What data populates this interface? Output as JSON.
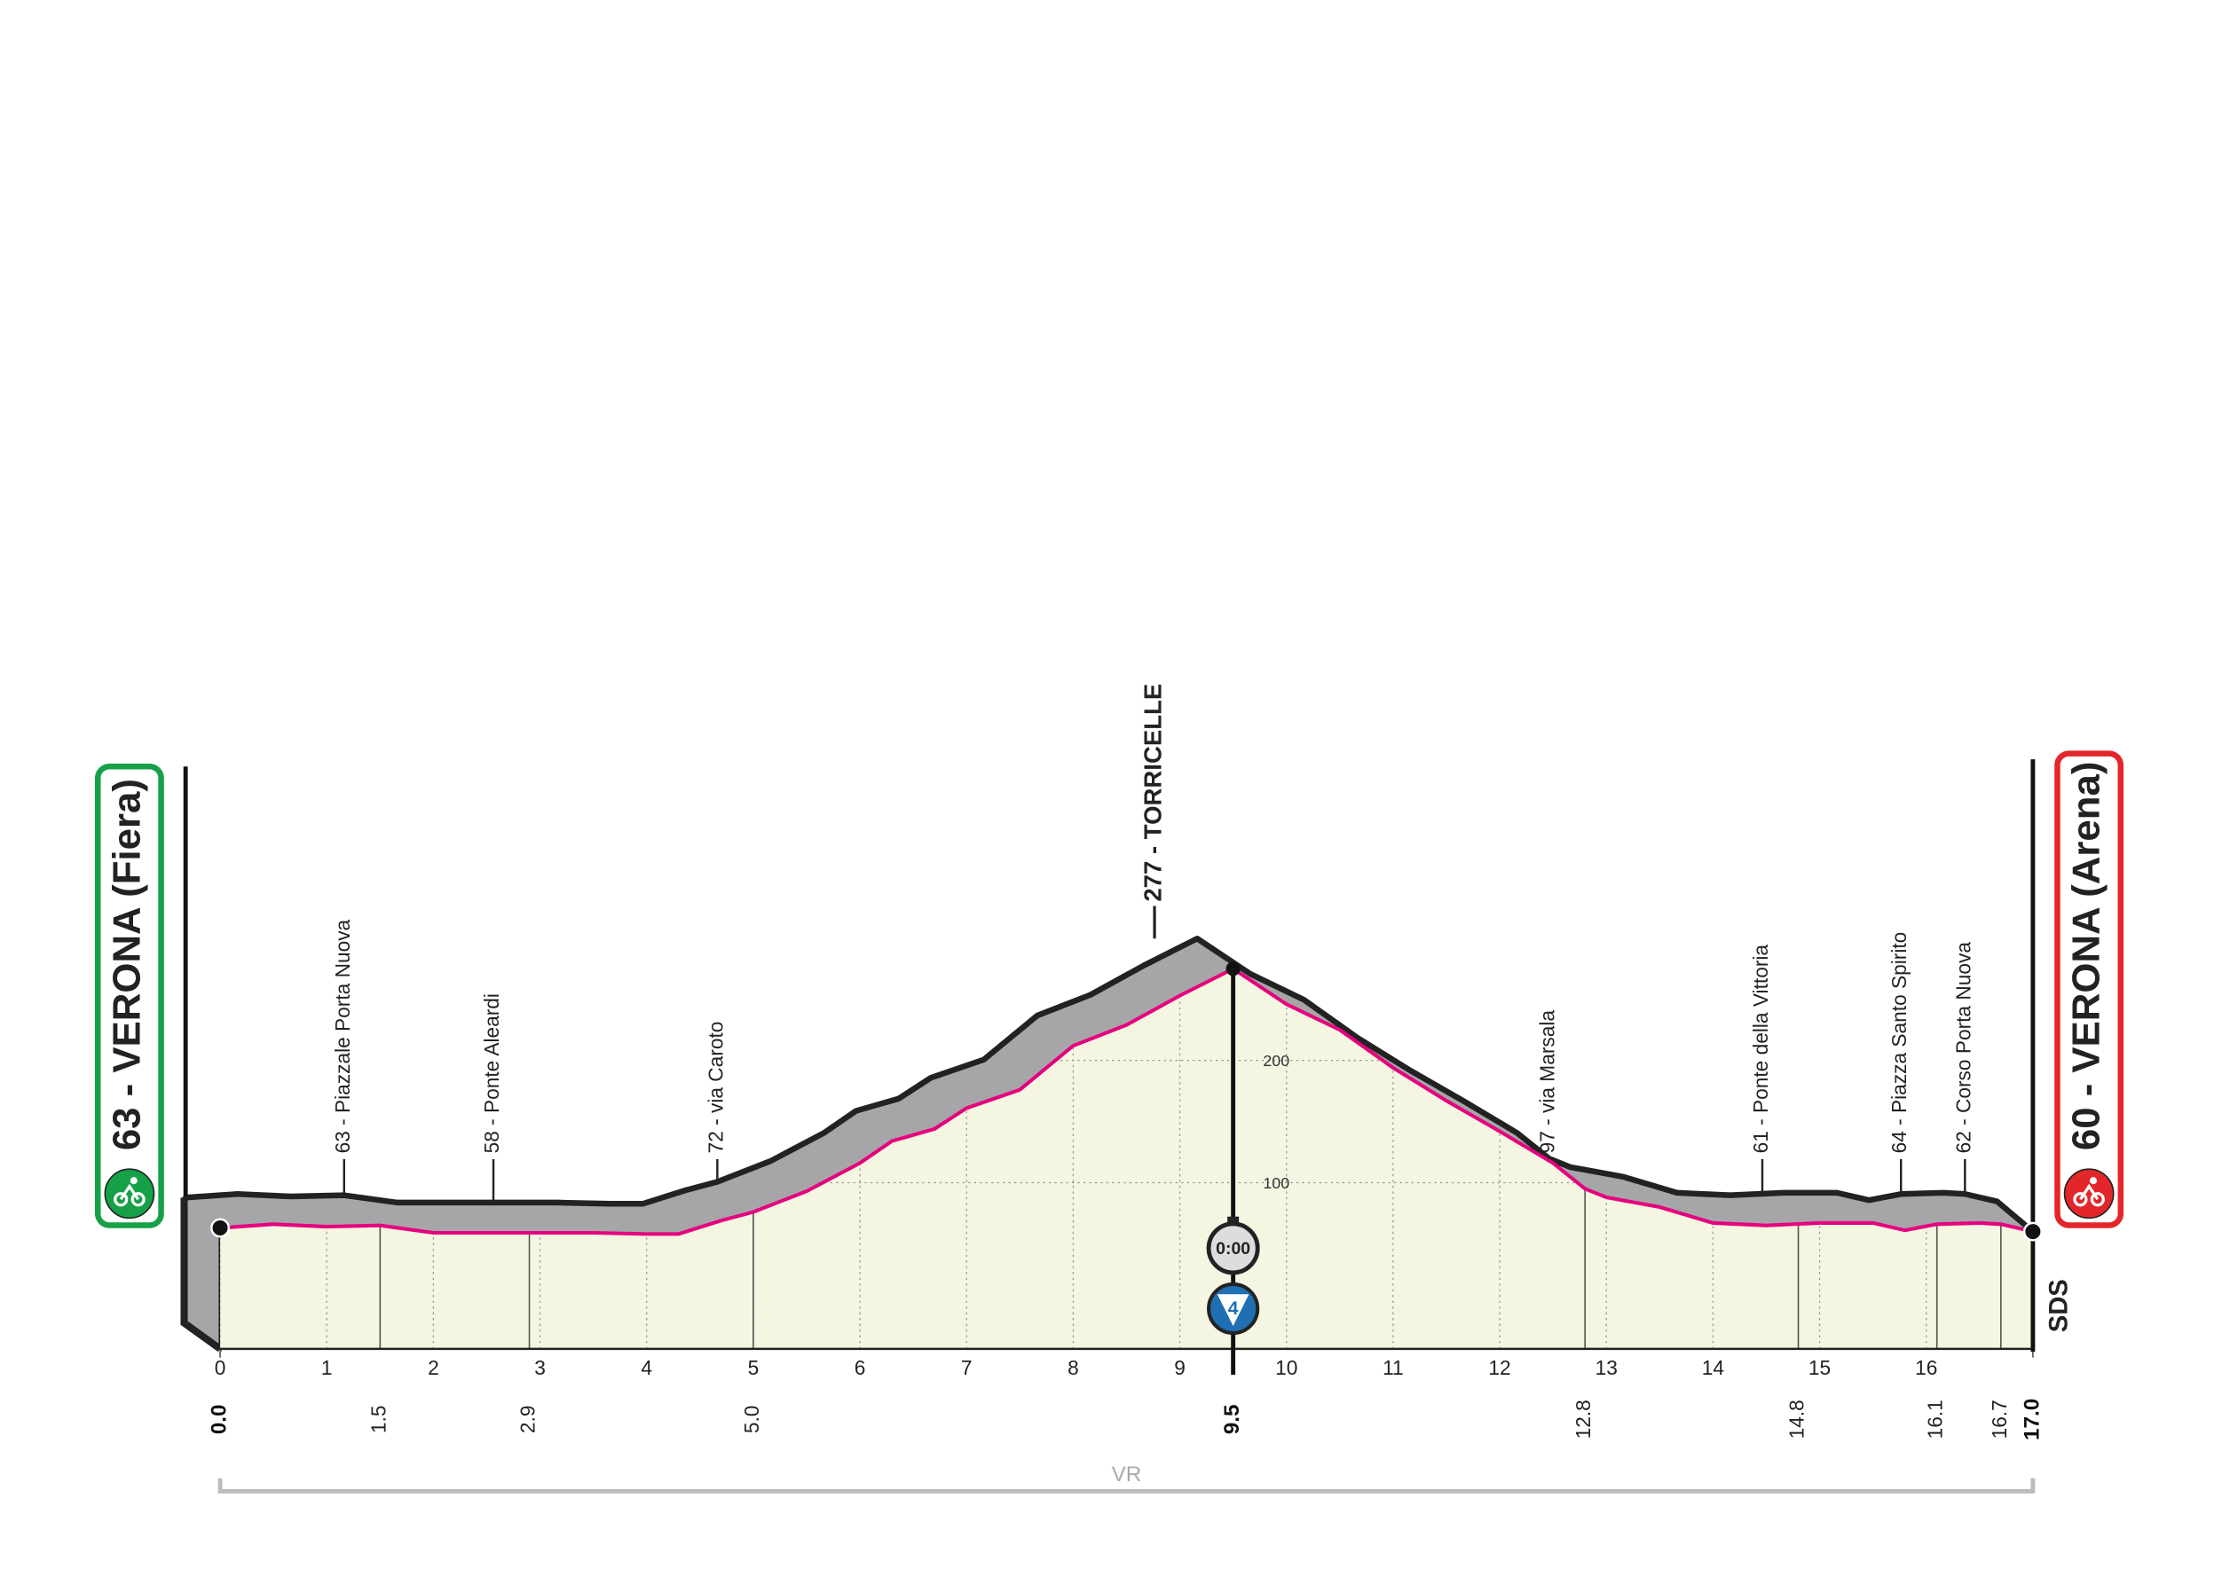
{
  "chart_data": {
    "type": "profile",
    "start": {
      "label": "63 - VERONA (Fiera)"
    },
    "finish": {
      "label": "60 - VERONA (Arena)"
    },
    "summit": {
      "label": "277 - TORRICELLE",
      "km": 9.1
    },
    "x": [
      0,
      0.5,
      1,
      1.5,
      2,
      2.5,
      3,
      3.5,
      4,
      4.3,
      4.7,
      5,
      5.5,
      6,
      6.3,
      6.7,
      7,
      7.5,
      8,
      8.5,
      9,
      9.5,
      10,
      10.5,
      11,
      11.5,
      12,
      12.5,
      12.8,
      13,
      13.5,
      14,
      14.5,
      15,
      15.5,
      15.8,
      16.1,
      16.5,
      16.7,
      17
    ],
    "elevation": [
      63,
      66,
      64,
      65,
      59,
      59,
      59,
      59,
      58,
      58,
      69,
      76,
      93,
      116,
      134,
      144,
      161,
      176,
      212,
      229,
      253,
      275,
      246,
      225,
      194,
      167,
      142,
      116,
      95,
      88,
      80,
      67,
      65,
      67,
      67,
      61,
      66,
      67,
      66,
      60
    ],
    "xlim": [
      0,
      17
    ],
    "ylim": [
      -36,
      300
    ],
    "xticks": [
      0,
      1,
      2,
      3,
      4,
      5,
      6,
      7,
      8,
      9,
      10,
      11,
      12,
      13,
      14,
      15,
      16
    ],
    "yticks": [
      100,
      200
    ],
    "km_markers": [
      {
        "value": 0,
        "label": "0.0"
      },
      1.5,
      2.9,
      {
        "value": 5,
        "label": "5.0"
      },
      9.5,
      12.8,
      14.8,
      16.1,
      16.7,
      {
        "value": 17,
        "label": "17.0"
      }
    ],
    "waypoints": [
      {
        "label": "63 - Piazzale Porta Nuova",
        "km": 1.5
      },
      {
        "label": "58 - Ponte Aleardi",
        "km": 2.9
      },
      {
        "label": "72 - via Caroto",
        "km": 5
      },
      {
        "label": "97 - via Marsala",
        "km": 12.8
      },
      {
        "label": "61 - Ponte della Vittoria",
        "km": 14.8
      },
      {
        "label": "64 - Piazza Santo Spirito",
        "km": 16.1
      },
      {
        "label": "62 - Corso Porta Nuova",
        "km": 16.7
      }
    ],
    "timing": {
      "label": "0:00",
      "km": 9.5
    },
    "climb": {
      "category": "4",
      "km": 9.5
    },
    "region": "VR",
    "logo": "SDS",
    "color": "#e6007e",
    "fill": "#f4f6e1",
    "band_color": "#a6a6a8"
  }
}
